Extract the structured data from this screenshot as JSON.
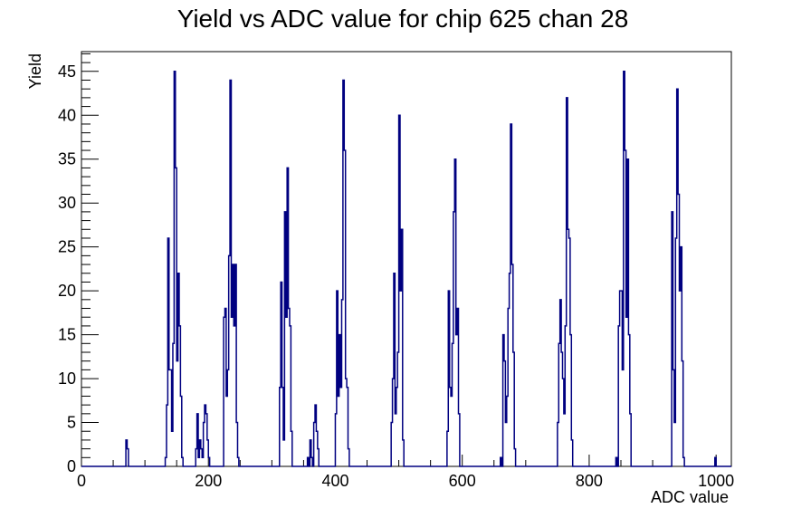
{
  "chart_data": {
    "type": "histogram",
    "title": "Yield vs ADC value for chip 625 chan 28",
    "xlabel": "ADC value",
    "ylabel": "Yield",
    "xlim": [
      0,
      1024
    ],
    "ylim": [
      0,
      47.25
    ],
    "bin_width": 2,
    "grid": false,
    "legend": "none",
    "x_ticks": [
      0,
      200,
      400,
      600,
      800,
      1000
    ],
    "y_ticks": [
      0,
      5,
      10,
      15,
      20,
      25,
      30,
      35,
      40,
      45
    ],
    "colors": {
      "line": "#000080",
      "frame": "#000000",
      "background": "#ffffff"
    },
    "series": [
      {
        "bins": [
          {
            "x": 70,
            "y": 3
          },
          {
            "x": 72,
            "y": 2
          },
          {
            "x": 132,
            "y": 1
          },
          {
            "x": 134,
            "y": 7
          },
          {
            "x": 136,
            "y": 26
          },
          {
            "x": 138,
            "y": 11
          },
          {
            "x": 140,
            "y": 11
          },
          {
            "x": 142,
            "y": 4
          },
          {
            "x": 144,
            "y": 14
          },
          {
            "x": 146,
            "y": 45
          },
          {
            "x": 148,
            "y": 34
          },
          {
            "x": 150,
            "y": 12
          },
          {
            "x": 152,
            "y": 22
          },
          {
            "x": 154,
            "y": 16
          },
          {
            "x": 156,
            "y": 8
          },
          {
            "x": 158,
            "y": 1
          },
          {
            "x": 180,
            "y": 2
          },
          {
            "x": 182,
            "y": 6
          },
          {
            "x": 184,
            "y": 1
          },
          {
            "x": 186,
            "y": 3
          },
          {
            "x": 188,
            "y": 2
          },
          {
            "x": 190,
            "y": 1
          },
          {
            "x": 192,
            "y": 5
          },
          {
            "x": 194,
            "y": 7
          },
          {
            "x": 196,
            "y": 6
          },
          {
            "x": 198,
            "y": 3
          },
          {
            "x": 200,
            "y": 1
          },
          {
            "x": 224,
            "y": 17
          },
          {
            "x": 226,
            "y": 18
          },
          {
            "x": 228,
            "y": 8
          },
          {
            "x": 230,
            "y": 11
          },
          {
            "x": 232,
            "y": 24
          },
          {
            "x": 234,
            "y": 44
          },
          {
            "x": 236,
            "y": 17
          },
          {
            "x": 238,
            "y": 23
          },
          {
            "x": 240,
            "y": 16
          },
          {
            "x": 242,
            "y": 23
          },
          {
            "x": 244,
            "y": 5
          },
          {
            "x": 246,
            "y": 1
          },
          {
            "x": 312,
            "y": 9
          },
          {
            "x": 314,
            "y": 21
          },
          {
            "x": 316,
            "y": 9
          },
          {
            "x": 318,
            "y": 3
          },
          {
            "x": 320,
            "y": 29
          },
          {
            "x": 322,
            "y": 17
          },
          {
            "x": 324,
            "y": 34
          },
          {
            "x": 326,
            "y": 18
          },
          {
            "x": 328,
            "y": 16
          },
          {
            "x": 330,
            "y": 4
          },
          {
            "x": 356,
            "y": 1
          },
          {
            "x": 360,
            "y": 3
          },
          {
            "x": 362,
            "y": 1
          },
          {
            "x": 366,
            "y": 5
          },
          {
            "x": 368,
            "y": 7
          },
          {
            "x": 370,
            "y": 4
          },
          {
            "x": 372,
            "y": 2
          },
          {
            "x": 400,
            "y": 6
          },
          {
            "x": 402,
            "y": 20
          },
          {
            "x": 404,
            "y": 8
          },
          {
            "x": 406,
            "y": 15
          },
          {
            "x": 408,
            "y": 9
          },
          {
            "x": 410,
            "y": 19
          },
          {
            "x": 412,
            "y": 44
          },
          {
            "x": 414,
            "y": 36
          },
          {
            "x": 416,
            "y": 10
          },
          {
            "x": 418,
            "y": 9
          },
          {
            "x": 420,
            "y": 2
          },
          {
            "x": 488,
            "y": 5
          },
          {
            "x": 490,
            "y": 10
          },
          {
            "x": 492,
            "y": 22
          },
          {
            "x": 494,
            "y": 6
          },
          {
            "x": 496,
            "y": 9
          },
          {
            "x": 498,
            "y": 13
          },
          {
            "x": 500,
            "y": 40
          },
          {
            "x": 502,
            "y": 20
          },
          {
            "x": 504,
            "y": 27
          },
          {
            "x": 506,
            "y": 3
          },
          {
            "x": 576,
            "y": 4
          },
          {
            "x": 578,
            "y": 20
          },
          {
            "x": 580,
            "y": 9
          },
          {
            "x": 582,
            "y": 8
          },
          {
            "x": 584,
            "y": 14
          },
          {
            "x": 586,
            "y": 29
          },
          {
            "x": 588,
            "y": 35
          },
          {
            "x": 590,
            "y": 15
          },
          {
            "x": 592,
            "y": 18
          },
          {
            "x": 594,
            "y": 6
          },
          {
            "x": 660,
            "y": 1
          },
          {
            "x": 664,
            "y": 15
          },
          {
            "x": 666,
            "y": 12
          },
          {
            "x": 668,
            "y": 5
          },
          {
            "x": 670,
            "y": 8
          },
          {
            "x": 672,
            "y": 18
          },
          {
            "x": 674,
            "y": 22
          },
          {
            "x": 676,
            "y": 39
          },
          {
            "x": 678,
            "y": 23
          },
          {
            "x": 680,
            "y": 13
          },
          {
            "x": 682,
            "y": 2
          },
          {
            "x": 750,
            "y": 5
          },
          {
            "x": 752,
            "y": 14
          },
          {
            "x": 754,
            "y": 19
          },
          {
            "x": 756,
            "y": 13
          },
          {
            "x": 758,
            "y": 10
          },
          {
            "x": 760,
            "y": 6
          },
          {
            "x": 762,
            "y": 16
          },
          {
            "x": 764,
            "y": 42
          },
          {
            "x": 766,
            "y": 27
          },
          {
            "x": 768,
            "y": 26
          },
          {
            "x": 770,
            "y": 15
          },
          {
            "x": 772,
            "y": 3
          },
          {
            "x": 842,
            "y": 1
          },
          {
            "x": 846,
            "y": 16
          },
          {
            "x": 848,
            "y": 20
          },
          {
            "x": 850,
            "y": 20
          },
          {
            "x": 852,
            "y": 11
          },
          {
            "x": 854,
            "y": 45
          },
          {
            "x": 856,
            "y": 36
          },
          {
            "x": 858,
            "y": 17
          },
          {
            "x": 860,
            "y": 35
          },
          {
            "x": 862,
            "y": 15
          },
          {
            "x": 864,
            "y": 6
          },
          {
            "x": 930,
            "y": 29
          },
          {
            "x": 932,
            "y": 11
          },
          {
            "x": 934,
            "y": 5
          },
          {
            "x": 936,
            "y": 26
          },
          {
            "x": 938,
            "y": 43
          },
          {
            "x": 940,
            "y": 31
          },
          {
            "x": 942,
            "y": 20
          },
          {
            "x": 944,
            "y": 25
          },
          {
            "x": 946,
            "y": 12
          },
          {
            "x": 948,
            "y": 1
          },
          {
            "x": 998,
            "y": 1
          }
        ]
      }
    ]
  }
}
